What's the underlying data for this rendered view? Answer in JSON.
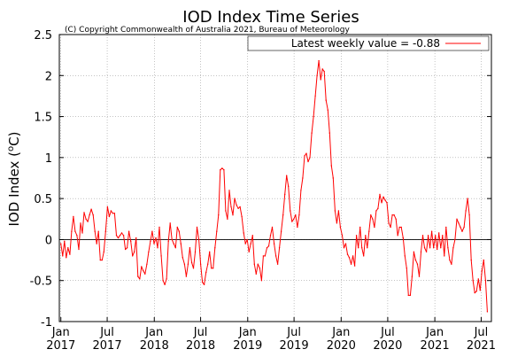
{
  "chart_data": {
    "type": "line",
    "title": "IOD Index Time Series",
    "subtitle": "(C) Copyright Commonwealth of Australia 2021, Bureau of Meteorology",
    "xlabel": "",
    "ylabel_main": "IOD Index (",
    "ylabel_sup": "o",
    "ylabel_unit": "C)",
    "ylim": [
      -1,
      2.5
    ],
    "yticks": [
      {
        "value": 2.5,
        "label": "2.5"
      },
      {
        "value": 2,
        "label": "2"
      },
      {
        "value": 1.5,
        "label": "1.5"
      },
      {
        "value": 1,
        "label": "1"
      },
      {
        "value": 0.5,
        "label": "0.5"
      },
      {
        "value": 0,
        "label": "0"
      },
      {
        "value": -0.5,
        "label": "-0.5"
      },
      {
        "value": -1,
        "label": "-1"
      }
    ],
    "xlim": [
      "2016-12-26",
      "2021-08-10"
    ],
    "xticks": [
      {
        "date": "2017-01-01",
        "month": "Jan",
        "year": "2017"
      },
      {
        "date": "2017-07-01",
        "month": "Jul",
        "year": "2017"
      },
      {
        "date": "2018-01-01",
        "month": "Jan",
        "year": "2018"
      },
      {
        "date": "2018-07-01",
        "month": "Jul",
        "year": "2018"
      },
      {
        "date": "2019-01-01",
        "month": "Jan",
        "year": "2019"
      },
      {
        "date": "2019-07-01",
        "month": "Jul",
        "year": "2019"
      },
      {
        "date": "2020-01-01",
        "month": "Jan",
        "year": "2020"
      },
      {
        "date": "2020-07-01",
        "month": "Jul",
        "year": "2020"
      },
      {
        "date": "2021-01-01",
        "month": "Jan",
        "year": "2021"
      },
      {
        "date": "2021-07-01",
        "month": "Jul",
        "year": "2021"
      }
    ],
    "grid": true,
    "legend_position": "top-right",
    "series": [
      {
        "name": "Latest weekly value = -0.88",
        "color": "#ff0000",
        "points": [
          [
            "2017-01-01",
            -0.05
          ],
          [
            "2017-01-08",
            -0.2
          ],
          [
            "2017-01-15",
            -0.02
          ],
          [
            "2017-01-22",
            -0.22
          ],
          [
            "2017-01-29",
            -0.1
          ],
          [
            "2017-02-05",
            -0.18
          ],
          [
            "2017-02-12",
            0.1
          ],
          [
            "2017-02-19",
            0.28
          ],
          [
            "2017-02-26",
            0.1
          ],
          [
            "2017-03-05",
            0.05
          ],
          [
            "2017-03-12",
            -0.12
          ],
          [
            "2017-03-19",
            0.2
          ],
          [
            "2017-03-26",
            0.08
          ],
          [
            "2017-04-02",
            0.33
          ],
          [
            "2017-04-09",
            0.25
          ],
          [
            "2017-04-16",
            0.22
          ],
          [
            "2017-04-23",
            0.3
          ],
          [
            "2017-04-30",
            0.37
          ],
          [
            "2017-05-07",
            0.3
          ],
          [
            "2017-05-14",
            0.1
          ],
          [
            "2017-05-21",
            -0.05
          ],
          [
            "2017-05-28",
            0.1
          ],
          [
            "2017-06-04",
            -0.25
          ],
          [
            "2017-06-11",
            -0.25
          ],
          [
            "2017-06-18",
            -0.15
          ],
          [
            "2017-06-25",
            0.1
          ],
          [
            "2017-07-02",
            0.4
          ],
          [
            "2017-07-09",
            0.28
          ],
          [
            "2017-07-16",
            0.35
          ],
          [
            "2017-07-23",
            0.32
          ],
          [
            "2017-07-30",
            0.32
          ],
          [
            "2017-08-06",
            0.05
          ],
          [
            "2017-08-13",
            0.02
          ],
          [
            "2017-08-20",
            0.05
          ],
          [
            "2017-08-27",
            0.08
          ],
          [
            "2017-09-03",
            0.05
          ],
          [
            "2017-09-10",
            -0.12
          ],
          [
            "2017-09-17",
            -0.1
          ],
          [
            "2017-09-24",
            0.1
          ],
          [
            "2017-10-01",
            -0.02
          ],
          [
            "2017-10-08",
            -0.2
          ],
          [
            "2017-10-15",
            -0.15
          ],
          [
            "2017-10-22",
            0.02
          ],
          [
            "2017-10-29",
            -0.45
          ],
          [
            "2017-11-05",
            -0.48
          ],
          [
            "2017-11-12",
            -0.33
          ],
          [
            "2017-11-19",
            -0.38
          ],
          [
            "2017-11-26",
            -0.42
          ],
          [
            "2017-12-03",
            -0.3
          ],
          [
            "2017-12-10",
            -0.15
          ],
          [
            "2017-12-17",
            -0.02
          ],
          [
            "2017-12-24",
            0.1
          ],
          [
            "2017-12-31",
            -0.05
          ],
          [
            "2018-01-07",
            0.02
          ],
          [
            "2018-01-14",
            -0.1
          ],
          [
            "2018-01-21",
            0.15
          ],
          [
            "2018-01-28",
            -0.2
          ],
          [
            "2018-02-04",
            -0.5
          ],
          [
            "2018-02-11",
            -0.55
          ],
          [
            "2018-02-18",
            -0.48
          ],
          [
            "2018-02-25",
            -0.02
          ],
          [
            "2018-03-04",
            0.2
          ],
          [
            "2018-03-11",
            0.0
          ],
          [
            "2018-03-18",
            -0.05
          ],
          [
            "2018-03-25",
            -0.1
          ],
          [
            "2018-04-01",
            0.15
          ],
          [
            "2018-04-08",
            0.1
          ],
          [
            "2018-04-15",
            -0.05
          ],
          [
            "2018-04-22",
            -0.22
          ],
          [
            "2018-04-29",
            -0.3
          ],
          [
            "2018-05-06",
            -0.45
          ],
          [
            "2018-05-13",
            -0.3
          ],
          [
            "2018-05-20",
            -0.1
          ],
          [
            "2018-05-27",
            -0.28
          ],
          [
            "2018-06-03",
            -0.35
          ],
          [
            "2018-06-10",
            -0.15
          ],
          [
            "2018-06-17",
            0.15
          ],
          [
            "2018-06-24",
            0.0
          ],
          [
            "2018-07-01",
            -0.3
          ],
          [
            "2018-07-08",
            -0.52
          ],
          [
            "2018-07-15",
            -0.55
          ],
          [
            "2018-07-22",
            -0.4
          ],
          [
            "2018-07-29",
            -0.3
          ],
          [
            "2018-08-05",
            -0.15
          ],
          [
            "2018-08-12",
            -0.35
          ],
          [
            "2018-08-19",
            -0.35
          ],
          [
            "2018-08-26",
            -0.1
          ],
          [
            "2018-09-02",
            0.1
          ],
          [
            "2018-09-09",
            0.3
          ],
          [
            "2018-09-16",
            0.85
          ],
          [
            "2018-09-23",
            0.87
          ],
          [
            "2018-09-30",
            0.85
          ],
          [
            "2018-10-07",
            0.35
          ],
          [
            "2018-10-14",
            0.25
          ],
          [
            "2018-10-21",
            0.6
          ],
          [
            "2018-10-28",
            0.4
          ],
          [
            "2018-11-04",
            0.3
          ],
          [
            "2018-11-11",
            0.5
          ],
          [
            "2018-11-18",
            0.42
          ],
          [
            "2018-11-25",
            0.38
          ],
          [
            "2018-12-02",
            0.4
          ],
          [
            "2018-12-09",
            0.28
          ],
          [
            "2018-12-16",
            0.08
          ],
          [
            "2018-12-23",
            -0.05
          ],
          [
            "2018-12-30",
            0.0
          ],
          [
            "2019-01-06",
            -0.15
          ],
          [
            "2019-01-13",
            -0.05
          ],
          [
            "2019-01-20",
            0.05
          ],
          [
            "2019-01-27",
            -0.3
          ],
          [
            "2019-02-03",
            -0.42
          ],
          [
            "2019-02-10",
            -0.3
          ],
          [
            "2019-02-17",
            -0.35
          ],
          [
            "2019-02-24",
            -0.5
          ],
          [
            "2019-03-03",
            -0.2
          ],
          [
            "2019-03-10",
            -0.2
          ],
          [
            "2019-03-17",
            -0.1
          ],
          [
            "2019-03-24",
            -0.08
          ],
          [
            "2019-03-31",
            0.05
          ],
          [
            "2019-04-07",
            0.15
          ],
          [
            "2019-04-14",
            -0.05
          ],
          [
            "2019-04-21",
            -0.2
          ],
          [
            "2019-04-28",
            -0.3
          ],
          [
            "2019-05-05",
            -0.1
          ],
          [
            "2019-05-12",
            0.1
          ],
          [
            "2019-05-19",
            0.3
          ],
          [
            "2019-05-26",
            0.55
          ],
          [
            "2019-06-02",
            0.78
          ],
          [
            "2019-06-09",
            0.65
          ],
          [
            "2019-06-16",
            0.35
          ],
          [
            "2019-06-23",
            0.22
          ],
          [
            "2019-06-30",
            0.25
          ],
          [
            "2019-07-07",
            0.3
          ],
          [
            "2019-07-14",
            0.15
          ],
          [
            "2019-07-21",
            0.3
          ],
          [
            "2019-07-28",
            0.6
          ],
          [
            "2019-08-04",
            0.75
          ],
          [
            "2019-08-11",
            1.02
          ],
          [
            "2019-08-18",
            1.05
          ],
          [
            "2019-08-25",
            0.95
          ],
          [
            "2019-09-01",
            1.0
          ],
          [
            "2019-09-08",
            1.3
          ],
          [
            "2019-09-15",
            1.5
          ],
          [
            "2019-09-22",
            1.75
          ],
          [
            "2019-09-29",
            2.0
          ],
          [
            "2019-10-06",
            2.18
          ],
          [
            "2019-10-13",
            1.95
          ],
          [
            "2019-10-20",
            2.08
          ],
          [
            "2019-10-27",
            2.05
          ],
          [
            "2019-11-03",
            1.7
          ],
          [
            "2019-11-10",
            1.58
          ],
          [
            "2019-11-17",
            1.3
          ],
          [
            "2019-11-24",
            0.9
          ],
          [
            "2019-12-01",
            0.75
          ],
          [
            "2019-12-08",
            0.35
          ],
          [
            "2019-12-15",
            0.2
          ],
          [
            "2019-12-22",
            0.35
          ],
          [
            "2019-12-29",
            0.15
          ],
          [
            "2020-01-05",
            0.05
          ],
          [
            "2020-01-12",
            -0.1
          ],
          [
            "2020-01-19",
            -0.05
          ],
          [
            "2020-01-26",
            -0.18
          ],
          [
            "2020-02-02",
            -0.22
          ],
          [
            "2020-02-09",
            -0.3
          ],
          [
            "2020-02-16",
            -0.2
          ],
          [
            "2020-02-23",
            -0.32
          ],
          [
            "2020-03-01",
            0.05
          ],
          [
            "2020-03-08",
            -0.1
          ],
          [
            "2020-03-15",
            0.15
          ],
          [
            "2020-03-22",
            -0.1
          ],
          [
            "2020-03-29",
            -0.2
          ],
          [
            "2020-04-05",
            0.05
          ],
          [
            "2020-04-12",
            -0.1
          ],
          [
            "2020-04-19",
            0.1
          ],
          [
            "2020-04-26",
            0.3
          ],
          [
            "2020-05-03",
            0.25
          ],
          [
            "2020-05-10",
            0.15
          ],
          [
            "2020-05-17",
            0.35
          ],
          [
            "2020-05-24",
            0.38
          ],
          [
            "2020-05-31",
            0.55
          ],
          [
            "2020-06-07",
            0.45
          ],
          [
            "2020-06-14",
            0.52
          ],
          [
            "2020-06-21",
            0.48
          ],
          [
            "2020-06-28",
            0.45
          ],
          [
            "2020-07-05",
            0.2
          ],
          [
            "2020-07-12",
            0.15
          ],
          [
            "2020-07-19",
            0.3
          ],
          [
            "2020-07-26",
            0.3
          ],
          [
            "2020-08-02",
            0.25
          ],
          [
            "2020-08-09",
            0.05
          ],
          [
            "2020-08-16",
            0.15
          ],
          [
            "2020-08-23",
            0.15
          ],
          [
            "2020-08-30",
            0.02
          ],
          [
            "2020-09-06",
            -0.2
          ],
          [
            "2020-09-13",
            -0.35
          ],
          [
            "2020-09-20",
            -0.68
          ],
          [
            "2020-09-27",
            -0.68
          ],
          [
            "2020-10-04",
            -0.45
          ],
          [
            "2020-10-11",
            -0.15
          ],
          [
            "2020-10-18",
            -0.25
          ],
          [
            "2020-10-25",
            -0.3
          ],
          [
            "2020-11-01",
            -0.45
          ],
          [
            "2020-11-08",
            -0.15
          ],
          [
            "2020-11-15",
            0.05
          ],
          [
            "2020-11-22",
            -0.1
          ],
          [
            "2020-11-29",
            -0.15
          ],
          [
            "2020-12-06",
            0.05
          ],
          [
            "2020-12-13",
            -0.1
          ],
          [
            "2020-12-20",
            0.1
          ],
          [
            "2020-12-27",
            -0.1
          ],
          [
            "2021-01-03",
            0.05
          ],
          [
            "2021-01-10",
            -0.12
          ],
          [
            "2021-01-17",
            0.08
          ],
          [
            "2021-01-24",
            -0.1
          ],
          [
            "2021-01-31",
            0.05
          ],
          [
            "2021-02-07",
            -0.2
          ],
          [
            "2021-02-14",
            0.15
          ],
          [
            "2021-02-21",
            -0.1
          ],
          [
            "2021-02-28",
            -0.25
          ],
          [
            "2021-03-07",
            -0.3
          ],
          [
            "2021-03-14",
            -0.1
          ],
          [
            "2021-03-21",
            0.0
          ],
          [
            "2021-03-28",
            0.25
          ],
          [
            "2021-04-04",
            0.2
          ],
          [
            "2021-04-11",
            0.15
          ],
          [
            "2021-04-18",
            0.1
          ],
          [
            "2021-04-25",
            0.15
          ],
          [
            "2021-05-02",
            0.35
          ],
          [
            "2021-05-09",
            0.5
          ],
          [
            "2021-05-16",
            0.3
          ],
          [
            "2021-05-23",
            -0.25
          ],
          [
            "2021-05-30",
            -0.5
          ],
          [
            "2021-06-06",
            -0.65
          ],
          [
            "2021-06-13",
            -0.63
          ],
          [
            "2021-06-20",
            -0.48
          ],
          [
            "2021-06-27",
            -0.62
          ],
          [
            "2021-07-04",
            -0.38
          ],
          [
            "2021-07-11",
            -0.25
          ],
          [
            "2021-07-18",
            -0.5
          ],
          [
            "2021-07-25",
            -0.88
          ]
        ]
      }
    ]
  }
}
